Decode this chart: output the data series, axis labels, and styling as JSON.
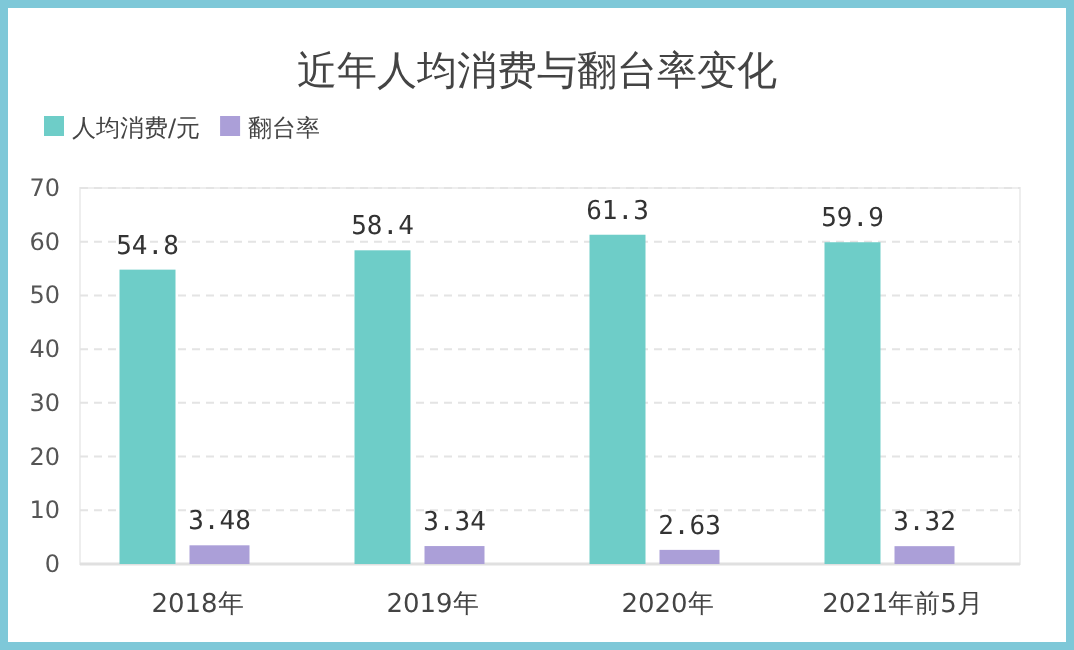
{
  "chart_data": {
    "type": "bar",
    "title": "近年人均消费与翻台率变化",
    "categories": [
      "2018年",
      "2019年",
      "2020年",
      "2021年前5月"
    ],
    "series": [
      {
        "name": "人均消费/元",
        "color": "#6ecdc8",
        "values": [
          54.8,
          58.4,
          61.3,
          59.9
        ]
      },
      {
        "name": "翻台率",
        "color": "#ab9fd8",
        "values": [
          3.48,
          3.34,
          2.63,
          3.32
        ]
      }
    ],
    "ylim": [
      0,
      70
    ],
    "yticks": [
      0,
      10,
      20,
      30,
      40,
      50,
      60,
      70
    ],
    "grid": "y",
    "legend": "top left",
    "data_labels": true
  }
}
